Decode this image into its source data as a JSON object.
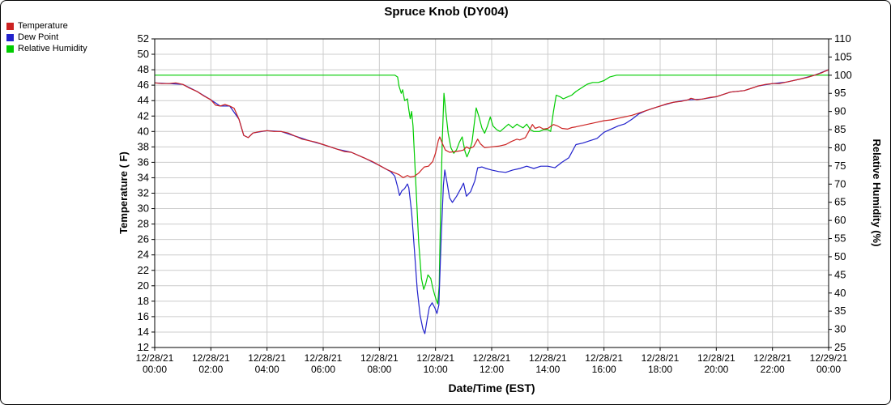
{
  "chart_data": {
    "type": "line",
    "title": "Spruce Knob (DY004)",
    "grid": true,
    "legend_position": "top-left",
    "colors": {
      "grid": "#cccccc",
      "axis": "#000000",
      "background": "#ffffff"
    },
    "x_axis": {
      "label": "Date/Time (EST)",
      "min": 0,
      "max": 24,
      "step": 2,
      "ticks": [
        {
          "t": 0,
          "date": "12/28/21",
          "time": "00:00"
        },
        {
          "t": 2,
          "date": "12/28/21",
          "time": "02:00"
        },
        {
          "t": 4,
          "date": "12/28/21",
          "time": "04:00"
        },
        {
          "t": 6,
          "date": "12/28/21",
          "time": "06:00"
        },
        {
          "t": 8,
          "date": "12/28/21",
          "time": "08:00"
        },
        {
          "t": 10,
          "date": "12/28/21",
          "time": "10:00"
        },
        {
          "t": 12,
          "date": "12/28/21",
          "time": "12:00"
        },
        {
          "t": 14,
          "date": "12/28/21",
          "time": "14:00"
        },
        {
          "t": 16,
          "date": "12/28/21",
          "time": "16:00"
        },
        {
          "t": 18,
          "date": "12/28/21",
          "time": "18:00"
        },
        {
          "t": 20,
          "date": "12/28/21",
          "time": "20:00"
        },
        {
          "t": 22,
          "date": "12/28/21",
          "time": "22:00"
        },
        {
          "t": 24,
          "date": "12/29/21",
          "time": "00:00"
        }
      ]
    },
    "y_left": {
      "label": "Temperature ( F)",
      "min": 12,
      "max": 52,
      "step": 2
    },
    "y_right": {
      "label": "Relative Humidity (%)",
      "min": 25,
      "max": 110,
      "step": 5
    },
    "series": [
      {
        "name": "Temperature",
        "color": "#cc2222",
        "axis": "left",
        "points": [
          [
            0,
            46.3
          ],
          [
            0.25,
            46.2
          ],
          [
            0.5,
            46.2
          ],
          [
            0.75,
            46.3
          ],
          [
            1,
            46.1
          ],
          [
            1.25,
            45.6
          ],
          [
            1.5,
            45.2
          ],
          [
            1.75,
            44.6
          ],
          [
            2,
            44.1
          ],
          [
            2.17,
            43.4
          ],
          [
            2.33,
            43.3
          ],
          [
            2.5,
            43.5
          ],
          [
            2.67,
            43.3
          ],
          [
            2.83,
            43.0
          ],
          [
            3,
            41.6
          ],
          [
            3.17,
            39.5
          ],
          [
            3.33,
            39.2
          ],
          [
            3.5,
            39.8
          ],
          [
            3.75,
            40.0
          ],
          [
            4,
            40.1
          ],
          [
            4.25,
            40.0
          ],
          [
            4.5,
            40.0
          ],
          [
            4.75,
            39.8
          ],
          [
            5,
            39.4
          ],
          [
            5.25,
            39.0
          ],
          [
            5.5,
            38.8
          ],
          [
            5.75,
            38.6
          ],
          [
            6,
            38.3
          ],
          [
            6.25,
            38.0
          ],
          [
            6.5,
            37.7
          ],
          [
            6.75,
            37.4
          ],
          [
            7,
            37.3
          ],
          [
            7.25,
            36.9
          ],
          [
            7.5,
            36.5
          ],
          [
            7.75,
            36.1
          ],
          [
            8,
            35.6
          ],
          [
            8.25,
            35.1
          ],
          [
            8.5,
            34.7
          ],
          [
            8.7,
            34.4
          ],
          [
            8.85,
            34.0
          ],
          [
            9,
            34.3
          ],
          [
            9.1,
            34.1
          ],
          [
            9.25,
            34.2
          ],
          [
            9.4,
            34.6
          ],
          [
            9.5,
            35.0
          ],
          [
            9.6,
            35.4
          ],
          [
            9.75,
            35.5
          ],
          [
            9.9,
            36.1
          ],
          [
            10,
            37.2
          ],
          [
            10.1,
            38.8
          ],
          [
            10.15,
            39.3
          ],
          [
            10.25,
            38.4
          ],
          [
            10.35,
            37.6
          ],
          [
            10.5,
            37.3
          ],
          [
            10.7,
            37.4
          ],
          [
            10.9,
            37.5
          ],
          [
            11,
            37.6
          ],
          [
            11.1,
            38.0
          ],
          [
            11.2,
            37.8
          ],
          [
            11.35,
            38.0
          ],
          [
            11.5,
            39.0
          ],
          [
            11.6,
            38.4
          ],
          [
            11.75,
            37.9
          ],
          [
            12,
            38.0
          ],
          [
            12.25,
            38.1
          ],
          [
            12.5,
            38.3
          ],
          [
            12.7,
            38.7
          ],
          [
            12.9,
            39.0
          ],
          [
            13,
            38.9
          ],
          [
            13.2,
            39.2
          ],
          [
            13.35,
            40.2
          ],
          [
            13.45,
            40.9
          ],
          [
            13.55,
            40.4
          ],
          [
            13.7,
            40.6
          ],
          [
            13.85,
            40.3
          ],
          [
            14,
            40.4
          ],
          [
            14.2,
            40.9
          ],
          [
            14.35,
            40.7
          ],
          [
            14.5,
            40.4
          ],
          [
            14.7,
            40.3
          ],
          [
            14.85,
            40.5
          ],
          [
            15,
            40.6
          ],
          [
            15.25,
            40.8
          ],
          [
            15.5,
            41.0
          ],
          [
            15.75,
            41.2
          ],
          [
            16,
            41.4
          ],
          [
            16.25,
            41.5
          ],
          [
            16.5,
            41.7
          ],
          [
            16.75,
            41.9
          ],
          [
            17,
            42.1
          ],
          [
            17.25,
            42.4
          ],
          [
            17.5,
            42.7
          ],
          [
            17.75,
            43.0
          ],
          [
            18,
            43.3
          ],
          [
            18.25,
            43.6
          ],
          [
            18.5,
            43.8
          ],
          [
            18.75,
            43.9
          ],
          [
            19,
            44.1
          ],
          [
            19.1,
            44.3
          ],
          [
            19.3,
            44.1
          ],
          [
            19.5,
            44.2
          ],
          [
            19.75,
            44.4
          ],
          [
            20,
            44.5
          ],
          [
            20.25,
            44.8
          ],
          [
            20.5,
            45.1
          ],
          [
            20.75,
            45.2
          ],
          [
            21,
            45.3
          ],
          [
            21.25,
            45.6
          ],
          [
            21.5,
            45.9
          ],
          [
            21.75,
            46.1
          ],
          [
            22,
            46.2
          ],
          [
            22.25,
            46.2
          ],
          [
            22.5,
            46.4
          ],
          [
            22.75,
            46.6
          ],
          [
            23,
            46.8
          ],
          [
            23.25,
            47.0
          ],
          [
            23.5,
            47.3
          ],
          [
            23.75,
            47.6
          ],
          [
            24,
            48.0
          ]
        ]
      },
      {
        "name": "Dew Point",
        "color": "#2222cc",
        "axis": "left",
        "points": [
          [
            0,
            46.3
          ],
          [
            0.5,
            46.2
          ],
          [
            1,
            46.1
          ],
          [
            1.5,
            45.2
          ],
          [
            2,
            44.1
          ],
          [
            2.33,
            43.3
          ],
          [
            2.67,
            43.3
          ],
          [
            3,
            41.6
          ],
          [
            3.17,
            39.5
          ],
          [
            3.33,
            39.2
          ],
          [
            3.5,
            39.8
          ],
          [
            4,
            40.1
          ],
          [
            4.5,
            40.0
          ],
          [
            5,
            39.4
          ],
          [
            5.5,
            38.8
          ],
          [
            6,
            38.3
          ],
          [
            6.5,
            37.7
          ],
          [
            7,
            37.3
          ],
          [
            7.5,
            36.5
          ],
          [
            8,
            35.6
          ],
          [
            8.4,
            34.8
          ],
          [
            8.55,
            34.2
          ],
          [
            8.65,
            32.8
          ],
          [
            8.72,
            31.7
          ],
          [
            8.8,
            32.3
          ],
          [
            8.9,
            32.6
          ],
          [
            9,
            33.2
          ],
          [
            9.05,
            32.7
          ],
          [
            9.15,
            29.5
          ],
          [
            9.25,
            24.5
          ],
          [
            9.35,
            19.5
          ],
          [
            9.45,
            16.2
          ],
          [
            9.55,
            14.4
          ],
          [
            9.62,
            13.8
          ],
          [
            9.7,
            15.6
          ],
          [
            9.78,
            17.2
          ],
          [
            9.88,
            17.8
          ],
          [
            9.98,
            17.1
          ],
          [
            10.05,
            16.4
          ],
          [
            10.12,
            17.5
          ],
          [
            10.2,
            26.0
          ],
          [
            10.28,
            33.0
          ],
          [
            10.33,
            35.0
          ],
          [
            10.42,
            33.2
          ],
          [
            10.5,
            31.4
          ],
          [
            10.6,
            30.8
          ],
          [
            10.75,
            31.6
          ],
          [
            10.9,
            32.6
          ],
          [
            11,
            33.3
          ],
          [
            11.1,
            31.6
          ],
          [
            11.25,
            32.2
          ],
          [
            11.4,
            33.6
          ],
          [
            11.5,
            35.3
          ],
          [
            11.65,
            35.4
          ],
          [
            11.8,
            35.2
          ],
          [
            12,
            35.0
          ],
          [
            12.25,
            34.8
          ],
          [
            12.5,
            34.7
          ],
          [
            12.75,
            35.0
          ],
          [
            13,
            35.2
          ],
          [
            13.25,
            35.5
          ],
          [
            13.5,
            35.2
          ],
          [
            13.75,
            35.5
          ],
          [
            14,
            35.5
          ],
          [
            14.25,
            35.3
          ],
          [
            14.5,
            36.0
          ],
          [
            14.75,
            36.6
          ],
          [
            15,
            38.3
          ],
          [
            15.25,
            38.5
          ],
          [
            15.5,
            38.8
          ],
          [
            15.75,
            39.1
          ],
          [
            16,
            39.9
          ],
          [
            16.25,
            40.3
          ],
          [
            16.5,
            40.7
          ],
          [
            16.75,
            41.0
          ],
          [
            17,
            41.6
          ],
          [
            17.25,
            42.3
          ],
          [
            17.5,
            42.7
          ],
          [
            17.75,
            43.0
          ],
          [
            18,
            43.3
          ],
          [
            18.5,
            43.8
          ],
          [
            19,
            44.1
          ],
          [
            19.5,
            44.2
          ],
          [
            20,
            44.5
          ],
          [
            20.5,
            45.1
          ],
          [
            21,
            45.3
          ],
          [
            21.5,
            45.9
          ],
          [
            22,
            46.2
          ],
          [
            22.5,
            46.4
          ],
          [
            23,
            46.8
          ],
          [
            23.5,
            47.3
          ],
          [
            24,
            48.0
          ]
        ]
      },
      {
        "name": "Relative Humidity",
        "color": "#00cc00",
        "axis": "right",
        "points": [
          [
            0,
            100
          ],
          [
            2,
            100
          ],
          [
            4,
            100
          ],
          [
            6,
            100
          ],
          [
            8,
            100
          ],
          [
            8.55,
            100
          ],
          [
            8.65,
            99.5
          ],
          [
            8.7,
            97
          ],
          [
            8.78,
            95
          ],
          [
            8.83,
            96
          ],
          [
            8.9,
            93
          ],
          [
            9,
            93.5
          ],
          [
            9.05,
            90.5
          ],
          [
            9.1,
            88
          ],
          [
            9.15,
            90
          ],
          [
            9.2,
            86
          ],
          [
            9.3,
            70
          ],
          [
            9.4,
            54
          ],
          [
            9.5,
            44
          ],
          [
            9.58,
            41
          ],
          [
            9.65,
            42.5
          ],
          [
            9.73,
            45
          ],
          [
            9.83,
            44
          ],
          [
            9.9,
            41.5
          ],
          [
            9.97,
            39.5
          ],
          [
            10.03,
            38
          ],
          [
            10.08,
            37
          ],
          [
            10.13,
            42
          ],
          [
            10.18,
            62
          ],
          [
            10.24,
            82
          ],
          [
            10.3,
            95
          ],
          [
            10.36,
            90.5
          ],
          [
            10.45,
            84
          ],
          [
            10.55,
            80
          ],
          [
            10.65,
            78.5
          ],
          [
            10.75,
            79.5
          ],
          [
            10.85,
            81.5
          ],
          [
            10.95,
            83
          ],
          [
            11.05,
            79
          ],
          [
            11.12,
            77.5
          ],
          [
            11.2,
            79
          ],
          [
            11.3,
            81.5
          ],
          [
            11.45,
            91
          ],
          [
            11.55,
            88.5
          ],
          [
            11.65,
            85.5
          ],
          [
            11.75,
            84
          ],
          [
            11.85,
            86
          ],
          [
            11.95,
            88.5
          ],
          [
            12.05,
            86
          ],
          [
            12.18,
            85
          ],
          [
            12.3,
            84.5
          ],
          [
            12.45,
            85.5
          ],
          [
            12.6,
            86.5
          ],
          [
            12.75,
            85.5
          ],
          [
            12.9,
            86.5
          ],
          [
            13,
            86
          ],
          [
            13.12,
            85.5
          ],
          [
            13.25,
            86.5
          ],
          [
            13.38,
            85
          ],
          [
            13.5,
            84.5
          ],
          [
            13.7,
            84.5
          ],
          [
            13.85,
            85
          ],
          [
            14,
            85
          ],
          [
            14.1,
            84.5
          ],
          [
            14.2,
            90
          ],
          [
            14.3,
            94.5
          ],
          [
            14.45,
            94
          ],
          [
            14.55,
            93.5
          ],
          [
            14.7,
            94
          ],
          [
            14.85,
            94.5
          ],
          [
            15,
            95.5
          ],
          [
            15.2,
            96.5
          ],
          [
            15.4,
            97.5
          ],
          [
            15.6,
            98
          ],
          [
            15.8,
            98
          ],
          [
            16,
            98.5
          ],
          [
            16.2,
            99.5
          ],
          [
            16.45,
            100
          ],
          [
            17,
            100
          ],
          [
            18,
            100
          ],
          [
            19,
            100
          ],
          [
            20,
            100
          ],
          [
            21,
            100
          ],
          [
            22,
            100
          ],
          [
            23,
            100
          ],
          [
            24,
            100
          ]
        ]
      }
    ]
  }
}
